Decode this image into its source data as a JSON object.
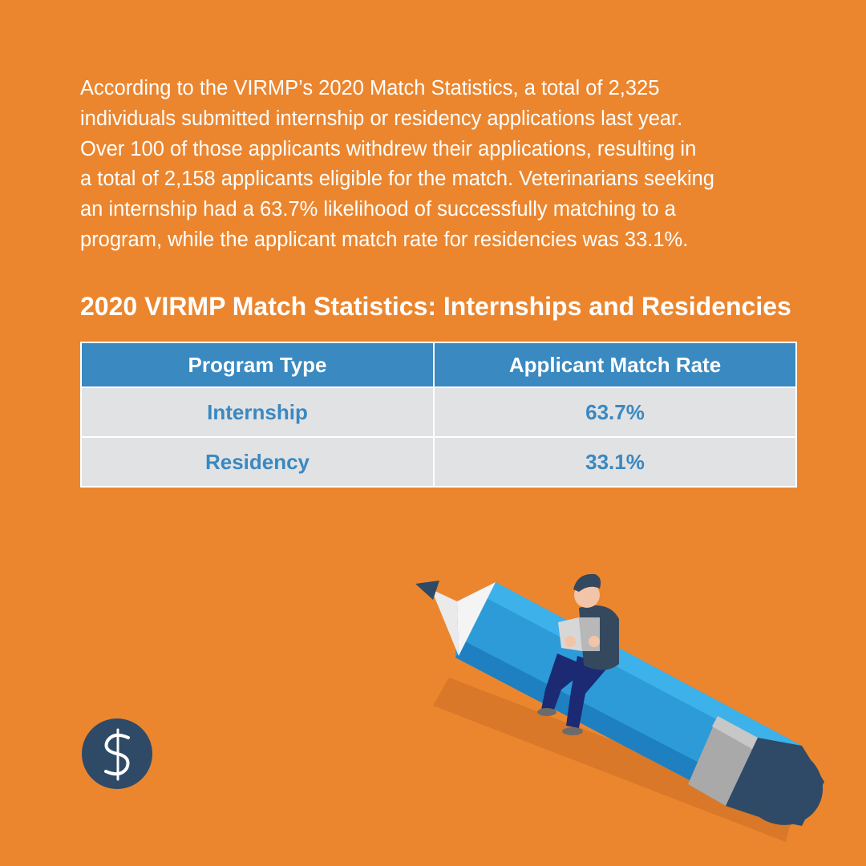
{
  "colors": {
    "background": "#EB862F",
    "table_header": "#3A89C0",
    "table_cell_bg": "#E1E2E4",
    "table_cell_text": "#3A88C1",
    "logo_circle": "#2E4A66"
  },
  "intro": {
    "lines": [
      "According to the VIRMP’s 2020 Match Statistics, a total of 2,325",
      "individuals submitted internship or residency applications last year.",
      "Over 100 of those applicants withdrew their applications, resulting in",
      "a total of 2,158 applicants eligible for the match. Veterinarians seeking",
      "an internship had a 63.7% likelihood of successfully matching to a",
      "program, while the applicant match rate for residencies was 33.1%."
    ]
  },
  "table": {
    "title": "2020 VIRMP Match Statistics: Internships and Residencies",
    "headers": [
      "Program Type",
      "Applicant Match Rate"
    ],
    "rows": [
      [
        "Internship",
        "63.7%"
      ],
      [
        "Residency",
        "33.1%"
      ]
    ]
  },
  "illustration": {
    "icon": "pencil-reader-icon"
  },
  "logo": {
    "icon": "caduceus-s-logo-icon"
  }
}
